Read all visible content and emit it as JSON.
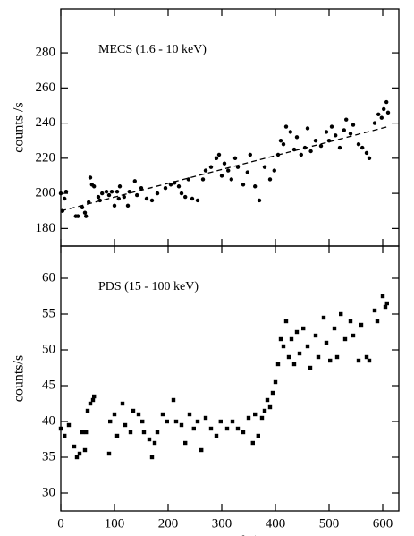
{
  "chart_data": [
    {
      "type": "scatter",
      "annotation": "MECS (1.6 - 10 keV)",
      "ylabel": "counts /s",
      "marker": "circle",
      "color": "#000000",
      "xlim": [
        0,
        630
      ],
      "xticks": [
        0,
        100,
        200,
        300,
        400,
        500,
        600
      ],
      "ylim": [
        170,
        305
      ],
      "yticks": [
        180,
        200,
        220,
        240,
        260,
        280
      ],
      "x": [
        0,
        3,
        7,
        10,
        28,
        32,
        40,
        45,
        47,
        52,
        55,
        58,
        62,
        70,
        73,
        77,
        85,
        90,
        95,
        100,
        105,
        108,
        110,
        118,
        125,
        128,
        138,
        142,
        150,
        160,
        170,
        180,
        195,
        205,
        212,
        220,
        225,
        232,
        238,
        245,
        255,
        265,
        270,
        280,
        290,
        295,
        300,
        305,
        312,
        318,
        325,
        330,
        340,
        348,
        353,
        362,
        370,
        380,
        390,
        398,
        405,
        410,
        415,
        420,
        428,
        435,
        440,
        448,
        455,
        460,
        466,
        475,
        485,
        495,
        500,
        505,
        512,
        520,
        528,
        532,
        540,
        545,
        555,
        562,
        570,
        575,
        585,
        592,
        598,
        602,
        607,
        610
      ],
      "y": [
        200,
        190,
        197,
        201,
        187,
        187,
        192,
        189,
        187,
        195,
        209,
        205,
        204,
        198,
        196,
        200,
        201,
        199,
        201,
        193,
        201,
        197,
        204,
        198,
        193,
        201,
        207,
        199,
        203,
        197,
        196,
        200,
        203,
        205,
        206,
        204,
        200,
        198,
        208,
        197,
        196,
        208,
        213,
        215,
        220,
        222,
        210,
        217,
        213,
        208,
        220,
        215,
        205,
        212,
        222,
        204,
        196,
        215,
        208,
        213,
        222,
        230,
        228,
        238,
        235,
        225,
        232,
        222,
        226,
        237,
        224,
        230,
        227,
        235,
        230,
        238,
        233,
        226,
        236,
        242,
        234,
        239,
        228,
        226,
        223,
        220,
        240,
        245,
        243,
        248,
        252,
        246
      ],
      "fit_line": {
        "x": [
          0,
          610
        ],
        "y": [
          190,
          238
        ]
      }
    },
    {
      "type": "scatter",
      "annotation": "PDS (15 - 100 keV)",
      "ylabel": "counts/s",
      "xlabel": "Time  (ks)",
      "marker": "square",
      "color": "#000000",
      "xlim": [
        0,
        630
      ],
      "xticks": [
        0,
        100,
        200,
        300,
        400,
        500,
        600
      ],
      "ylim": [
        27.5,
        64.5
      ],
      "yticks": [
        30,
        35,
        40,
        45,
        50,
        55,
        60
      ],
      "x": [
        0,
        7,
        15,
        25,
        30,
        35,
        40,
        45,
        47,
        50,
        55,
        60,
        62,
        90,
        92,
        100,
        105,
        115,
        120,
        130,
        135,
        145,
        152,
        155,
        165,
        170,
        175,
        180,
        190,
        198,
        210,
        215,
        225,
        232,
        240,
        248,
        255,
        262,
        270,
        280,
        290,
        298,
        310,
        320,
        330,
        340,
        350,
        358,
        362,
        368,
        375,
        380,
        385,
        390,
        395,
        400,
        405,
        410,
        415,
        420,
        425,
        430,
        435,
        440,
        445,
        452,
        460,
        465,
        475,
        480,
        490,
        495,
        502,
        510,
        515,
        522,
        530,
        540,
        545,
        555,
        560,
        570,
        575,
        585,
        590,
        600,
        605,
        608
      ],
      "y": [
        39,
        38,
        39.5,
        36.5,
        35,
        35.5,
        38.5,
        36,
        38.5,
        41.5,
        42.5,
        43,
        43.5,
        35.5,
        40,
        41,
        38,
        42.5,
        39.5,
        38.5,
        41.5,
        41,
        40,
        38.5,
        37.5,
        35,
        37,
        38.5,
        41,
        40,
        43,
        40,
        39.5,
        37,
        41,
        39,
        40,
        36,
        40.5,
        39,
        38,
        40,
        39,
        40,
        39,
        38.5,
        40.5,
        37,
        41,
        38,
        40.5,
        41.5,
        43,
        42,
        44,
        45.5,
        48,
        51.5,
        50.5,
        54,
        49,
        51.5,
        48,
        52.5,
        49.5,
        53,
        50.5,
        47.5,
        52,
        49,
        54.5,
        51,
        48.5,
        53,
        49,
        55,
        51.5,
        54,
        52,
        48.5,
        53.5,
        49,
        48.5,
        55.5,
        54,
        57.5,
        56,
        56.5
      ]
    }
  ]
}
